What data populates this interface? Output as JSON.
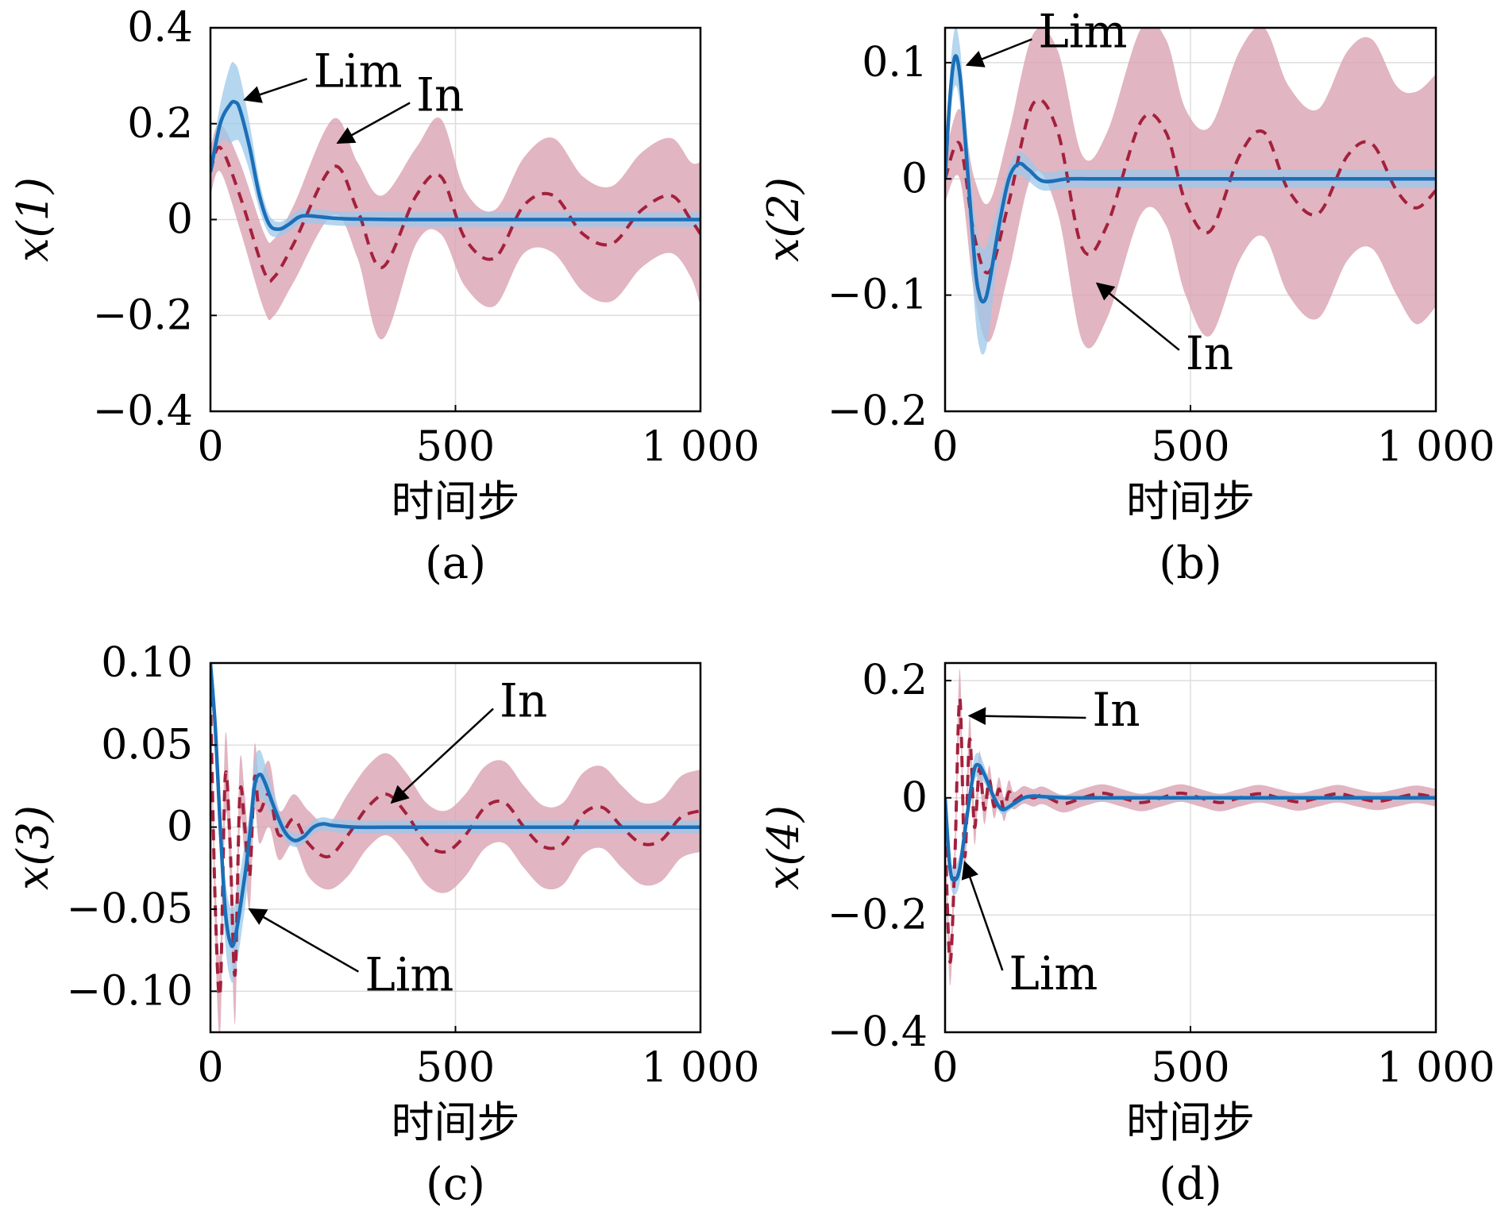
{
  "colors": {
    "lim_line": "#1a6fb8",
    "lim_band": "#9cc8ea",
    "in_line": "#a3213d",
    "in_band": "#d9a3b2"
  },
  "chart_data": [
    {
      "type": "line",
      "panel": "(a)",
      "xlabel": "时间步",
      "ylabel": "x(1)",
      "xlim": [
        0,
        1000
      ],
      "ylim": [
        -0.4,
        0.4
      ],
      "xticks": [
        0,
        500,
        1000
      ],
      "xtick_labels": [
        "0",
        "500",
        "1 000"
      ],
      "yticks": [
        -0.4,
        -0.2,
        0,
        0.2,
        0.4
      ],
      "ytick_labels": [
        "−0.4",
        "−0.2",
        "0",
        "0.2",
        "0.4"
      ],
      "grid": true,
      "series": [
        {
          "name": "Lim",
          "style": "solid",
          "x": [
            0,
            20,
            40,
            50,
            60,
            80,
            100,
            120,
            140,
            160,
            180,
            200,
            250,
            300,
            400,
            500,
            600,
            700,
            800,
            900,
            1000
          ],
          "y": [
            0.1,
            0.2,
            0.24,
            0.245,
            0.23,
            0.15,
            0.05,
            -0.01,
            -0.02,
            -0.01,
            0.005,
            0.008,
            0.003,
            0.001,
            0.0,
            0.0,
            0.0,
            0.0,
            0.0,
            0.0,
            0.0
          ],
          "band": [
            0.02,
            0.04,
            0.08,
            0.08,
            0.07,
            0.05,
            0.03,
            0.02,
            0.015,
            0.015,
            0.015,
            0.015,
            0.015,
            0.015,
            0.015,
            0.015,
            0.015,
            0.015,
            0.015,
            0.015,
            0.015
          ]
        },
        {
          "name": "In",
          "style": "dashed",
          "x": [
            0,
            20,
            60,
            110,
            130,
            170,
            250,
            300,
            350,
            420,
            470,
            520,
            580,
            640,
            700,
            760,
            820,
            880,
            940,
            980,
            1000
          ],
          "y": [
            0.1,
            0.15,
            0.05,
            -0.11,
            -0.12,
            -0.05,
            0.11,
            0.02,
            -0.1,
            0.05,
            0.09,
            -0.04,
            -0.08,
            0.03,
            0.05,
            -0.03,
            -0.05,
            0.02,
            0.05,
            0.0,
            -0.03
          ],
          "band": [
            0.05,
            0.05,
            0.07,
            0.08,
            0.08,
            0.08,
            0.1,
            0.1,
            0.15,
            0.1,
            0.12,
            0.1,
            0.1,
            0.1,
            0.12,
            0.12,
            0.12,
            0.12,
            0.12,
            0.12,
            0.15
          ]
        }
      ],
      "annotations": [
        {
          "text": "Lim",
          "x": 210,
          "y": 0.31,
          "arrow_to": [
            70,
            0.25
          ]
        },
        {
          "text": "In",
          "x": 420,
          "y": 0.26,
          "arrow_to": [
            260,
            0.16
          ]
        }
      ]
    },
    {
      "type": "line",
      "panel": "(b)",
      "xlabel": "时间步",
      "ylabel": "x(2)",
      "xlim": [
        0,
        1000
      ],
      "ylim": [
        -0.2,
        0.13
      ],
      "xticks": [
        0,
        500,
        1000
      ],
      "xtick_labels": [
        "0",
        "500",
        "1 000"
      ],
      "yticks": [
        -0.2,
        -0.1,
        0,
        0.1
      ],
      "ytick_labels": [
        "−0.2",
        "−0.1",
        "0",
        "0.1"
      ],
      "grid": true,
      "series": [
        {
          "name": "Lim",
          "style": "solid",
          "x": [
            0,
            10,
            20,
            30,
            40,
            60,
            70,
            80,
            90,
            110,
            130,
            150,
            170,
            200,
            250,
            300,
            400,
            500,
            600,
            700,
            800,
            900,
            1000
          ],
          "y": [
            0.0,
            0.07,
            0.105,
            0.09,
            0.04,
            -0.07,
            -0.1,
            -0.105,
            -0.09,
            -0.04,
            0.0,
            0.013,
            0.008,
            -0.002,
            0.0,
            0.0,
            0.0,
            0.0,
            0.0,
            0.0,
            0.0,
            0.0,
            0.0
          ],
          "band": [
            0.01,
            0.02,
            0.025,
            0.025,
            0.025,
            0.04,
            0.045,
            0.045,
            0.04,
            0.02,
            0.01,
            0.01,
            0.01,
            0.008,
            0.008,
            0.008,
            0.008,
            0.008,
            0.008,
            0.008,
            0.008,
            0.008,
            0.008
          ]
        },
        {
          "name": "In",
          "style": "dashed",
          "x": [
            0,
            30,
            60,
            90,
            130,
            180,
            230,
            280,
            330,
            400,
            450,
            490,
            540,
            600,
            650,
            700,
            760,
            820,
            870,
            920,
            960,
            1000
          ],
          "y": [
            0.0,
            0.03,
            -0.05,
            -0.08,
            -0.02,
            0.065,
            0.04,
            -0.06,
            -0.04,
            0.05,
            0.04,
            -0.02,
            -0.045,
            0.02,
            0.04,
            -0.01,
            -0.03,
            0.02,
            0.03,
            -0.01,
            -0.025,
            -0.01
          ],
          "band": [
            0.02,
            0.03,
            0.05,
            0.06,
            0.06,
            0.06,
            0.07,
            0.08,
            0.08,
            0.08,
            0.08,
            0.08,
            0.09,
            0.09,
            0.09,
            0.09,
            0.09,
            0.09,
            0.09,
            0.09,
            0.1,
            0.1
          ]
        }
      ],
      "annotations": [
        {
          "text": "Lim",
          "x": 190,
          "y": 0.127,
          "arrow_to": [
            45,
            0.098
          ]
        },
        {
          "text": "In",
          "x": 490,
          "y": -0.15,
          "arrow_to": [
            310,
            -0.09
          ]
        }
      ]
    },
    {
      "type": "line",
      "panel": "(c)",
      "xlabel": "时间步",
      "ylabel": "x(3)",
      "xlim": [
        0,
        1000
      ],
      "ylim": [
        -0.125,
        0.1
      ],
      "xticks": [
        0,
        500,
        1000
      ],
      "xtick_labels": [
        "0",
        "500",
        "1 000"
      ],
      "yticks": [
        -0.1,
        -0.05,
        0,
        0.05,
        0.1
      ],
      "ytick_labels": [
        "−0.10",
        "−0.05",
        "0",
        "0.05",
        "0.10"
      ],
      "grid": true,
      "series": [
        {
          "name": "Lim",
          "style": "solid",
          "x": [
            0,
            10,
            20,
            30,
            40,
            50,
            70,
            80,
            90,
            100,
            110,
            130,
            150,
            170,
            190,
            210,
            230,
            250,
            300,
            400,
            500,
            600,
            700,
            800,
            900,
            1000
          ],
          "y": [
            0.1,
            0.06,
            0.0,
            -0.05,
            -0.07,
            -0.068,
            -0.03,
            -0.005,
            0.025,
            0.032,
            0.028,
            0.012,
            -0.002,
            -0.008,
            -0.006,
            0.0,
            0.002,
            0.001,
            0.0,
            0.0,
            0.0,
            0.0,
            0.0,
            0.0,
            0.0,
            0.0
          ],
          "band": [
            0.005,
            0.01,
            0.015,
            0.02,
            0.022,
            0.022,
            0.02,
            0.015,
            0.015,
            0.015,
            0.012,
            0.008,
            0.005,
            0.004,
            0.004,
            0.004,
            0.004,
            0.004,
            0.004,
            0.004,
            0.004,
            0.004,
            0.004,
            0.004,
            0.004,
            0.004
          ]
        },
        {
          "name": "In",
          "style": "dashed",
          "x": [
            0,
            10,
            20,
            30,
            40,
            50,
            60,
            70,
            80,
            90,
            100,
            120,
            140,
            170,
            200,
            240,
            280,
            320,
            360,
            400,
            440,
            480,
            520,
            560,
            600,
            640,
            680,
            720,
            760,
            800,
            840,
            880,
            920,
            960,
            1000
          ],
          "y": [
            0.08,
            -0.05,
            -0.1,
            0.03,
            -0.01,
            -0.09,
            0.02,
            0.0,
            -0.03,
            0.03,
            0.01,
            0.02,
            -0.005,
            0.005,
            -0.01,
            -0.018,
            -0.005,
            0.012,
            0.02,
            0.008,
            -0.01,
            -0.015,
            -0.005,
            0.012,
            0.015,
            0.0,
            -0.012,
            -0.01,
            0.008,
            0.012,
            0.0,
            -0.01,
            -0.008,
            0.006,
            0.01
          ],
          "band": [
            0.01,
            0.02,
            0.025,
            0.025,
            0.02,
            0.03,
            0.02,
            0.02,
            0.02,
            0.02,
            0.02,
            0.02,
            0.015,
            0.015,
            0.02,
            0.02,
            0.025,
            0.025,
            0.025,
            0.025,
            0.025,
            0.025,
            0.025,
            0.025,
            0.025,
            0.025,
            0.025,
            0.025,
            0.025,
            0.025,
            0.025,
            0.025,
            0.025,
            0.025,
            0.025
          ]
        }
      ],
      "annotations": [
        {
          "text": "In",
          "x": 590,
          "y": 0.077,
          "arrow_to": [
            370,
            0.015
          ]
        },
        {
          "text": "Lim",
          "x": 315,
          "y": -0.09,
          "arrow_to": [
            80,
            -0.05
          ]
        }
      ]
    },
    {
      "type": "line",
      "panel": "(d)",
      "xlabel": "时间步",
      "ylabel": "x(4)",
      "xlim": [
        0,
        1000
      ],
      "ylim": [
        -0.4,
        0.23
      ],
      "xticks": [
        0,
        500,
        1000
      ],
      "xtick_labels": [
        "0",
        "500",
        "1 000"
      ],
      "yticks": [
        -0.4,
        -0.2,
        0,
        0.2
      ],
      "ytick_labels": [
        "−0.4",
        "−0.2",
        "0",
        "0.2"
      ],
      "grid": true,
      "series": [
        {
          "name": "Lim",
          "style": "solid",
          "x": [
            0,
            10,
            20,
            30,
            40,
            50,
            60,
            70,
            80,
            90,
            100,
            110,
            120,
            140,
            160,
            180,
            200,
            250,
            300,
            400,
            500,
            600,
            700,
            800,
            900,
            1000
          ],
          "y": [
            0.0,
            -0.12,
            -0.14,
            -0.12,
            -0.06,
            0.0,
            0.05,
            0.055,
            0.04,
            0.02,
            0.0,
            -0.015,
            -0.02,
            -0.01,
            0.0,
            0.003,
            0.002,
            0.0,
            0.0,
            0.0,
            0.0,
            0.0,
            0.0,
            0.0,
            0.0,
            0.0
          ],
          "band": [
            0.01,
            0.02,
            0.025,
            0.025,
            0.02,
            0.02,
            0.02,
            0.02,
            0.015,
            0.01,
            0.008,
            0.008,
            0.008,
            0.006,
            0.005,
            0.005,
            0.005,
            0.005,
            0.005,
            0.005,
            0.005,
            0.005,
            0.005,
            0.005,
            0.005,
            0.005
          ]
        },
        {
          "name": "In",
          "style": "dashed",
          "x": [
            0,
            10,
            20,
            30,
            40,
            50,
            60,
            70,
            80,
            90,
            100,
            110,
            120,
            130,
            140,
            160,
            180,
            200,
            240,
            280,
            320,
            360,
            400,
            440,
            480,
            520,
            560,
            600,
            640,
            680,
            720,
            760,
            800,
            840,
            880,
            920,
            960,
            1000
          ],
          "y": [
            -0.05,
            -0.28,
            -0.1,
            0.17,
            -0.1,
            0.1,
            -0.05,
            0.05,
            -0.02,
            0.03,
            -0.015,
            0.015,
            -0.02,
            0.01,
            -0.005,
            0.005,
            0.0,
            0.004,
            -0.01,
            0.0,
            0.008,
            0.0,
            -0.008,
            0.0,
            0.008,
            0.0,
            -0.008,
            0.0,
            0.007,
            0.0,
            -0.007,
            0.0,
            0.007,
            0.0,
            -0.006,
            0.0,
            0.006,
            0.0
          ],
          "band": [
            0.03,
            0.04,
            0.04,
            0.05,
            0.04,
            0.04,
            0.03,
            0.03,
            0.025,
            0.025,
            0.02,
            0.02,
            0.02,
            0.02,
            0.015,
            0.015,
            0.015,
            0.015,
            0.015,
            0.015,
            0.015,
            0.015,
            0.015,
            0.015,
            0.015,
            0.015,
            0.015,
            0.015,
            0.015,
            0.015,
            0.015,
            0.015,
            0.015,
            0.015,
            0.015,
            0.015,
            0.015,
            0.015
          ]
        }
      ],
      "annotations": [
        {
          "text": "In",
          "x": 300,
          "y": 0.15,
          "arrow_to": [
            50,
            0.14
          ]
        },
        {
          "text": "Lim",
          "x": 130,
          "y": -0.3,
          "arrow_to": [
            40,
            -0.11
          ]
        }
      ]
    }
  ]
}
